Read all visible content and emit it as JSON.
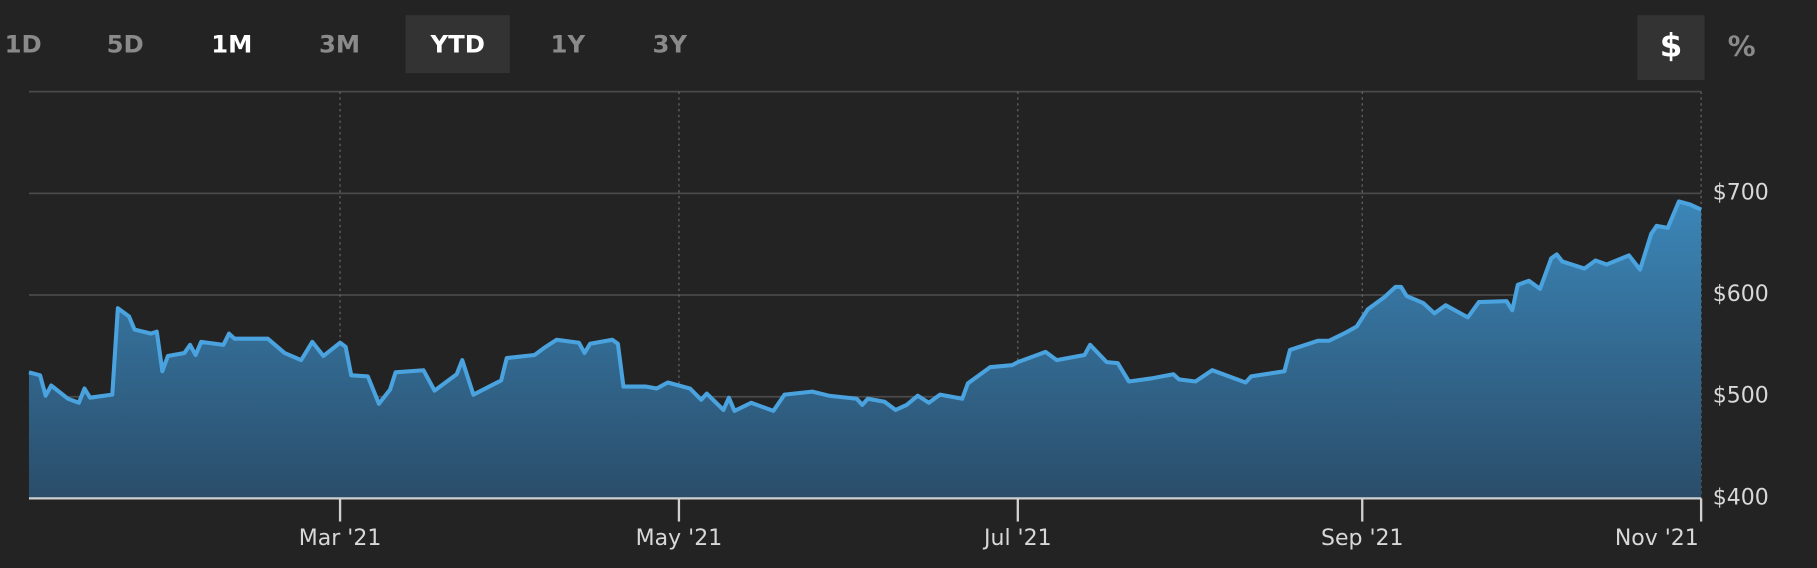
{
  "toolbar": {
    "ranges": [
      "1D",
      "5D",
      "1M",
      "3M",
      "YTD",
      "1Y",
      "3Y"
    ],
    "selected_range": 4,
    "highlighted_range": 2,
    "units": [
      "$",
      "%"
    ],
    "selected_unit": 0
  },
  "chart_data": {
    "type": "area",
    "color": "#4aa3df",
    "x": [
      "2021-01-04",
      "2021-01-06",
      "2021-01-07",
      "2021-01-08",
      "2021-01-11",
      "2021-01-13",
      "2021-01-14",
      "2021-01-15",
      "2021-01-19",
      "2021-01-20",
      "2021-01-22",
      "2021-01-23",
      "2021-01-26",
      "2021-01-27",
      "2021-01-28",
      "2021-01-29",
      "2021-02-01",
      "2021-02-02",
      "2021-02-03",
      "2021-02-04",
      "2021-02-08",
      "2021-02-09",
      "2021-02-10",
      "2021-02-16",
      "2021-02-19",
      "2021-02-22",
      "2021-02-24",
      "2021-02-26",
      "2021-03-01",
      "2021-03-02",
      "2021-03-03",
      "2021-03-06",
      "2021-03-08",
      "2021-03-10",
      "2021-03-11",
      "2021-03-16",
      "2021-03-18",
      "2021-03-22",
      "2021-03-23",
      "2021-03-25",
      "2021-03-30",
      "2021-03-31",
      "2021-04-05",
      "2021-04-07",
      "2021-04-09",
      "2021-04-13",
      "2021-04-14",
      "2021-04-15",
      "2021-04-19",
      "2021-04-20",
      "2021-04-21",
      "2021-04-25",
      "2021-04-27",
      "2021-04-29",
      "2021-05-03",
      "2021-05-05",
      "2021-05-06",
      "2021-05-09",
      "2021-05-10",
      "2021-05-11",
      "2021-05-14",
      "2021-05-18",
      "2021-05-20",
      "2021-05-25",
      "2021-05-28",
      "2021-06-02",
      "2021-06-03",
      "2021-06-04",
      "2021-06-07",
      "2021-06-09",
      "2021-06-11",
      "2021-06-13",
      "2021-06-15",
      "2021-06-17",
      "2021-06-21",
      "2021-06-22",
      "2021-06-26",
      "2021-06-30",
      "2021-07-01",
      "2021-07-06",
      "2021-07-08",
      "2021-07-13",
      "2021-07-14",
      "2021-07-17",
      "2021-07-19",
      "2021-07-21",
      "2021-07-25",
      "2021-07-29",
      "2021-07-30",
      "2021-08-02",
      "2021-08-05",
      "2021-08-11",
      "2021-08-12",
      "2021-08-18",
      "2021-08-19",
      "2021-08-24",
      "2021-08-26",
      "2021-08-29",
      "2021-08-31",
      "2021-09-02",
      "2021-09-05",
      "2021-09-07",
      "2021-09-08",
      "2021-09-09",
      "2021-09-12",
      "2021-09-14",
      "2021-09-16",
      "2021-09-20",
      "2021-09-22",
      "2021-09-27",
      "2021-09-28",
      "2021-09-29",
      "2021-10-01",
      "2021-10-03",
      "2021-10-05",
      "2021-10-06",
      "2021-10-07",
      "2021-10-11",
      "2021-10-13",
      "2021-10-15",
      "2021-10-19",
      "2021-10-21",
      "2021-10-23",
      "2021-10-24",
      "2021-10-26",
      "2021-10-28",
      "2021-10-30",
      "2021-11-01"
    ],
    "values": [
      524,
      521,
      501,
      511,
      498,
      494,
      508,
      499,
      502,
      587,
      579,
      566,
      562,
      564,
      525,
      540,
      543,
      551,
      541,
      554,
      551,
      562,
      557,
      557,
      543,
      536,
      554,
      540,
      553,
      549,
      521,
      520,
      493,
      507,
      524,
      526,
      506,
      522,
      536,
      502,
      516,
      538,
      541,
      549,
      556,
      553,
      543,
      552,
      556,
      552,
      510,
      510,
      508,
      514,
      508,
      497,
      503,
      487,
      499,
      486,
      494,
      486,
      502,
      505,
      501,
      498,
      492,
      498,
      495,
      487,
      492,
      501,
      494,
      502,
      498,
      513,
      529,
      531,
      534,
      544,
      536,
      541,
      551,
      534,
      533,
      515,
      518,
      522,
      517,
      515,
      526,
      514,
      520,
      525,
      546,
      555,
      555,
      563,
      569,
      586,
      598,
      608,
      608,
      599,
      592,
      582,
      590,
      578,
      593,
      594,
      585,
      610,
      614,
      606,
      636,
      640,
      633,
      626,
      634,
      630,
      639,
      625,
      660,
      668,
      666,
      692,
      689,
      684
    ],
    "xlim": [
      "2021-01-04",
      "2021-11-01"
    ],
    "xticks": [
      {
        "value": "2021-03-01",
        "label": "Mar '21"
      },
      {
        "value": "2021-05-01",
        "label": "May '21"
      },
      {
        "value": "2021-07-01",
        "label": "Jul '21"
      },
      {
        "value": "2021-09-01",
        "label": "Sep '21"
      },
      {
        "value": "2021-11-01",
        "label": "Nov '21"
      }
    ],
    "ylim": [
      400,
      800
    ],
    "yticks": [
      {
        "value": 400,
        "label": "$400"
      },
      {
        "value": 500,
        "label": "$500"
      },
      {
        "value": 600,
        "label": "$600"
      },
      {
        "value": 700,
        "label": "$700"
      }
    ],
    "grid": true
  }
}
